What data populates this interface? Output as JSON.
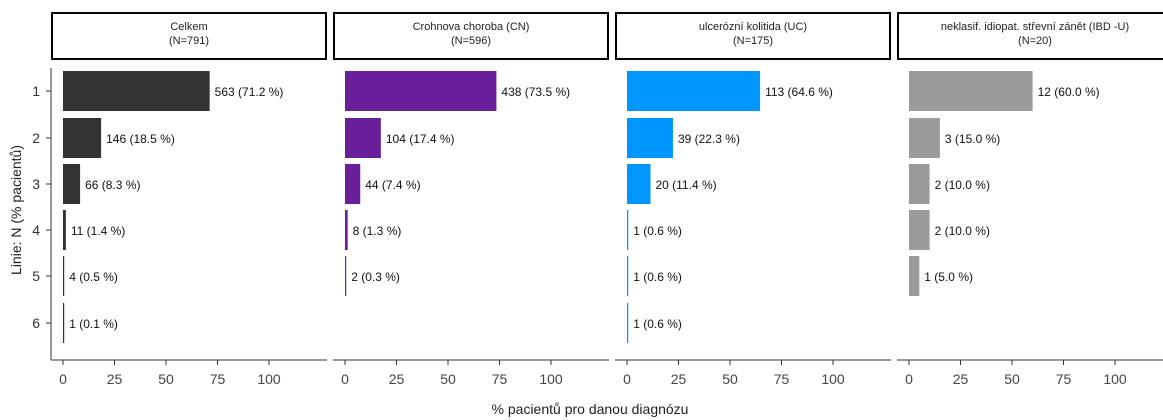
{
  "chart_data": {
    "type": "bar",
    "orientation": "horizontal",
    "ylabel": "Linie: N (% pacientů)",
    "xlabel": "% pacientů pro danou diagnózu",
    "xlim": [
      0,
      100
    ],
    "xticks": [
      "0",
      "25",
      "50",
      "75",
      "100"
    ],
    "categories": [
      "1",
      "2",
      "3",
      "4",
      "5",
      "6"
    ],
    "grid": false,
    "facets": [
      {
        "title": "Celkem",
        "subtitle": "(N=791)",
        "color": "#333333",
        "values": [
          71.2,
          18.5,
          8.3,
          1.4,
          0.5,
          0.1
        ],
        "labels": [
          "563 (71.2 %)",
          "146 (18.5 %)",
          "66 (8.3 %)",
          "11 (1.4 %)",
          "4 (0.5 %)",
          "1 (0.1 %)"
        ]
      },
      {
        "title": "Crohnova choroba (CN)",
        "subtitle": "(N=596)",
        "color": "#6a1f9a",
        "values": [
          73.5,
          17.4,
          7.4,
          1.3,
          0.3
        ],
        "labels": [
          "438 (73.5 %)",
          "104 (17.4 %)",
          "44 (7.4 %)",
          "8 (1.3 %)",
          "2 (0.3 %)"
        ]
      },
      {
        "title": "ulcerózní kolitida (UC)",
        "subtitle": "(N=175)",
        "color": "#0096ff",
        "values": [
          64.6,
          22.3,
          11.4,
          0.6,
          0.6,
          0.6
        ],
        "labels": [
          "113 (64.6 %)",
          "39 (22.3 %)",
          "20 (11.4 %)",
          "1 (0.6 %)",
          "1 (0.6 %)",
          "1 (0.6 %)"
        ]
      },
      {
        "title": "neklasif. idiopat. střevní zánět (IBD -U)",
        "subtitle": "(N=20)",
        "color": "#9b9b9b",
        "values": [
          60.0,
          15.0,
          10.0,
          10.0,
          5.0
        ],
        "labels": [
          "12 (60.0 %)",
          "3 (15.0 %)",
          "2 (10.0 %)",
          "2 (10.0 %)",
          "1 (5.0 %)"
        ]
      }
    ]
  }
}
